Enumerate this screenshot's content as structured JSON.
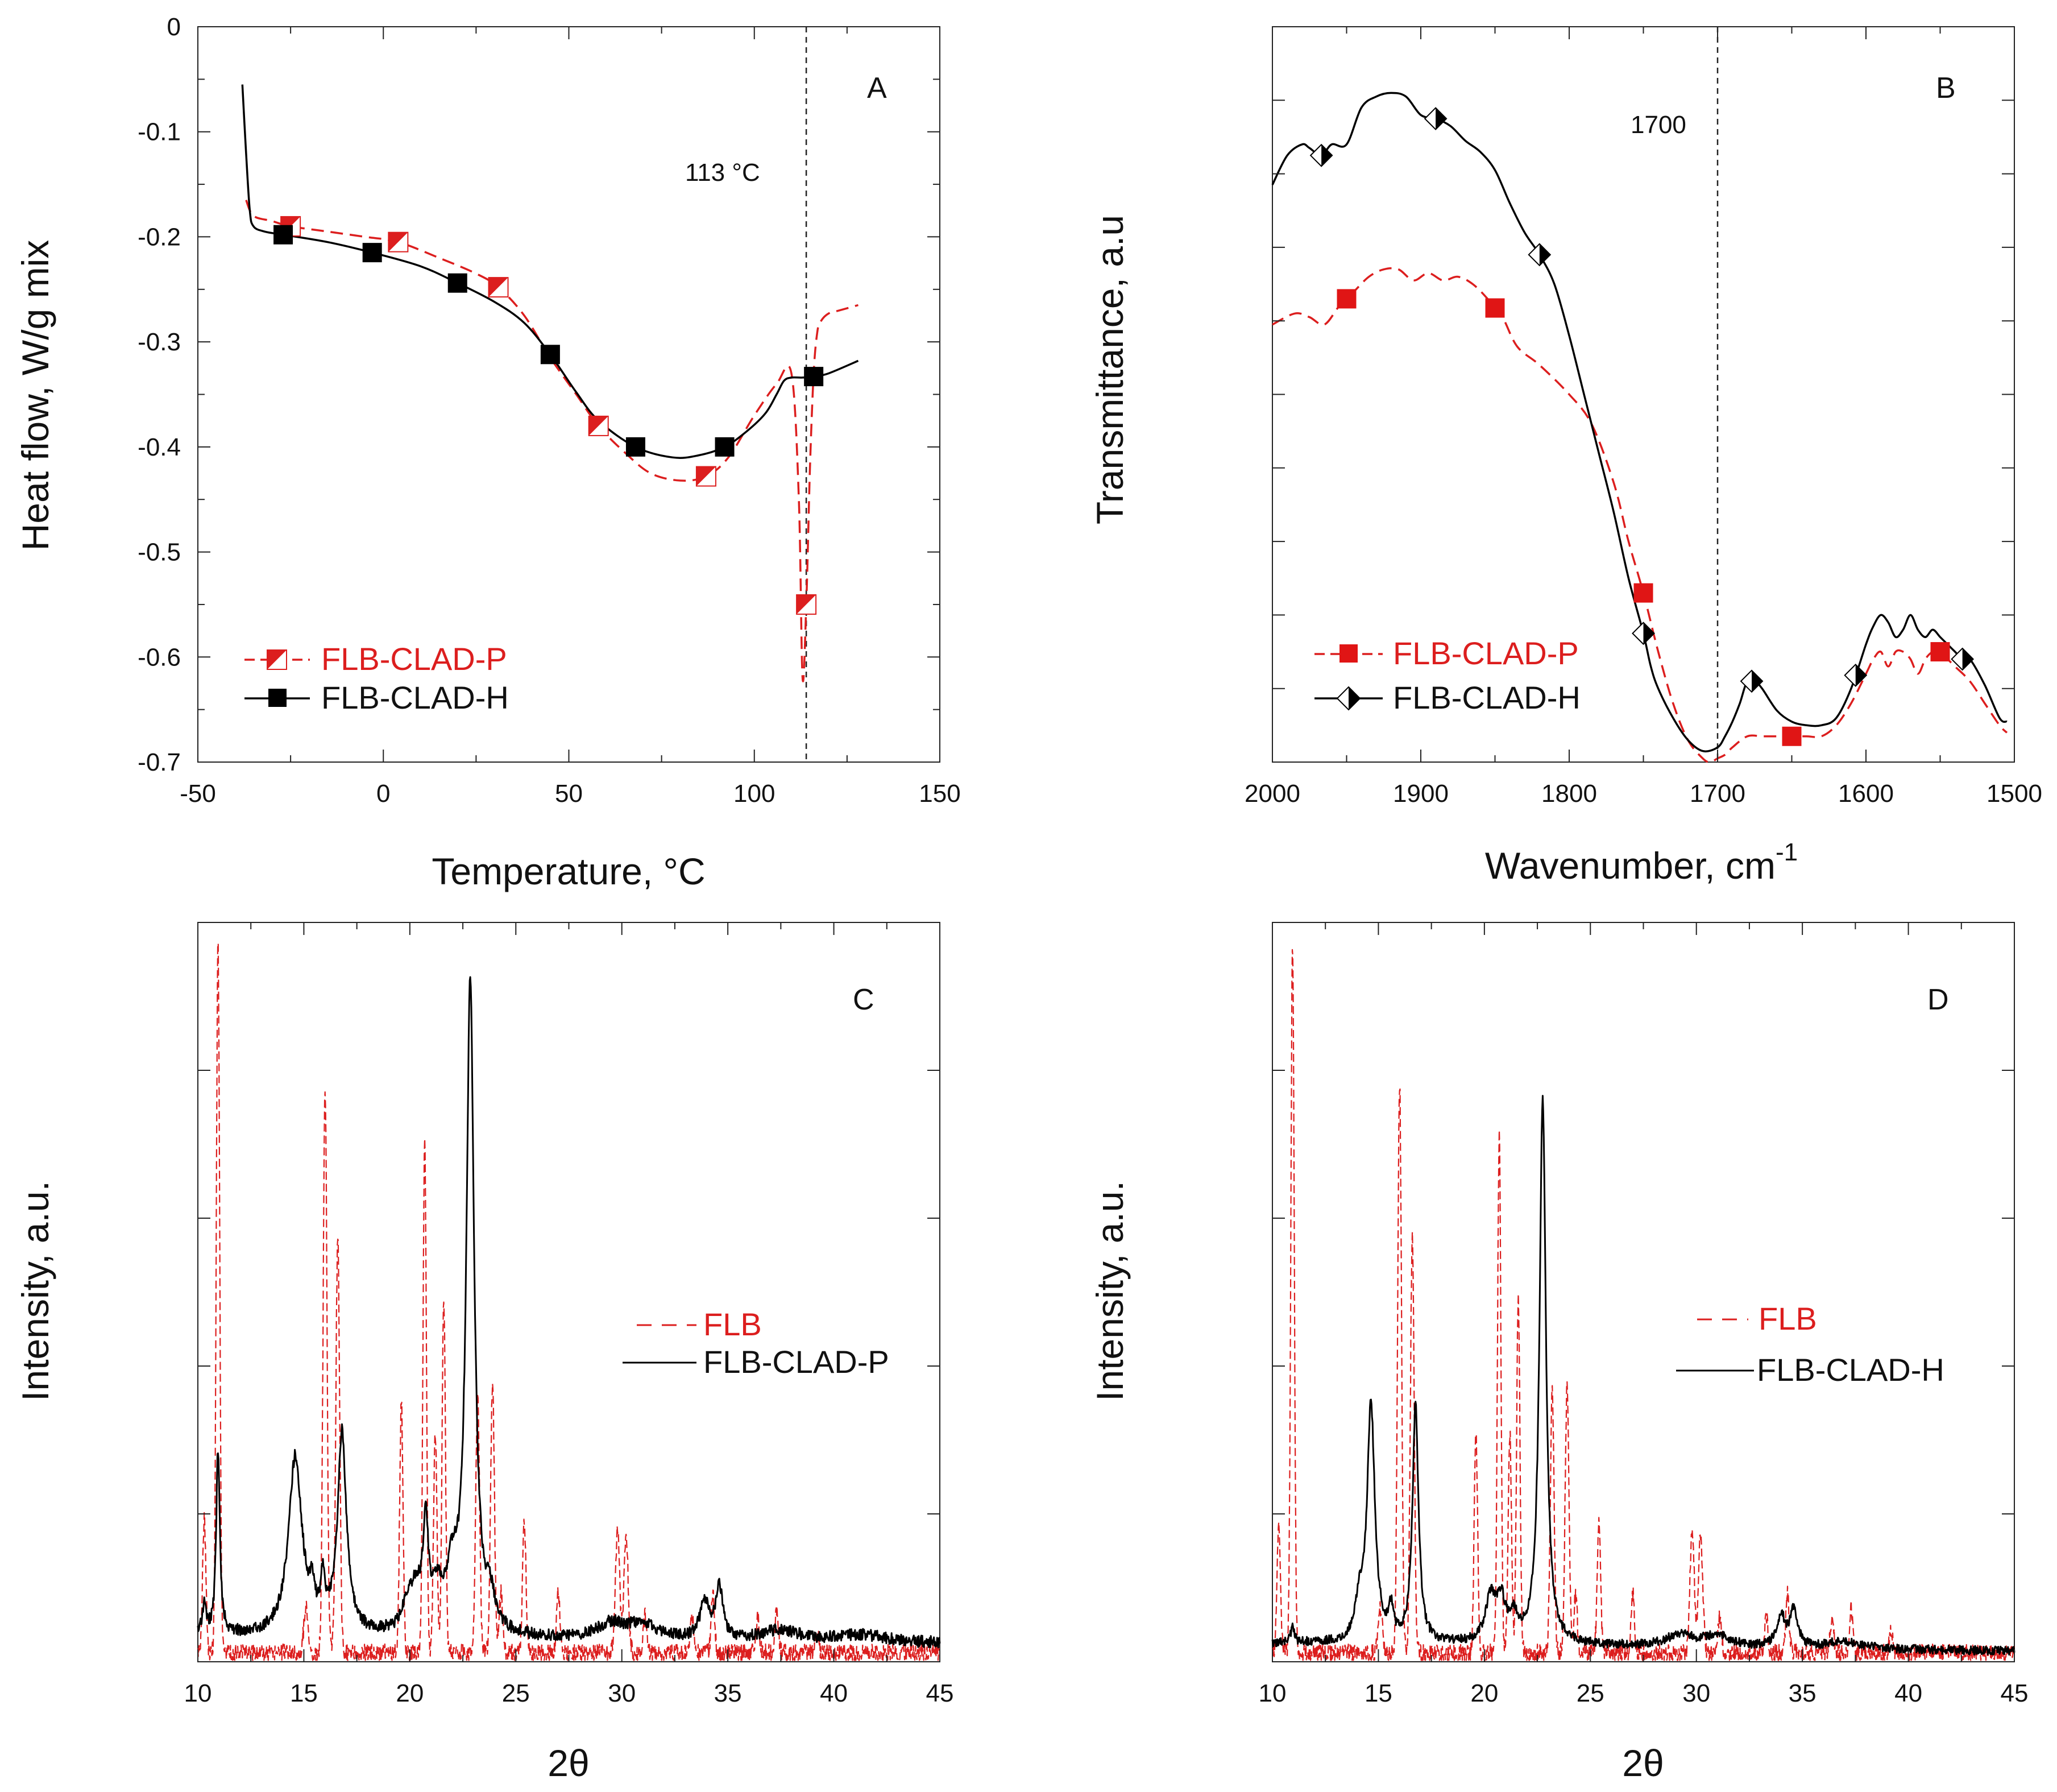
{
  "chart_data": [
    {
      "id": "A",
      "type": "line",
      "panel_label": "A",
      "xlabel": "Temperature, °C",
      "ylabel": "Heat flow, W/g mix",
      "xlim": [
        -50,
        150
      ],
      "ylim": [
        -0.7,
        0
      ],
      "xticks": [
        -50,
        0,
        50,
        100,
        150
      ],
      "yticks": [
        0,
        -0.1,
        -0.2,
        -0.3,
        -0.4,
        -0.5,
        -0.6,
        -0.7
      ],
      "ytick_labels": [
        "0",
        "-0.1",
        "-0.2",
        "-0.3",
        "-0.4",
        "-0.5",
        "-0.6",
        "-0.7"
      ],
      "grid": false,
      "legend_position": "bottom-left",
      "annotation": {
        "text": "113 °C",
        "vline_x": 114
      },
      "series": [
        {
          "name": "FLB-CLAD-P",
          "color": "#dc1e1e",
          "dash": true,
          "marker": "half-square",
          "x": [
            -37,
            -35,
            -30,
            -25,
            -15,
            -5,
            4,
            15,
            25,
            31,
            38,
            45,
            52,
            58,
            65,
            72,
            80,
            87,
            93,
            100,
            106,
            110,
            112,
            113,
            114,
            115,
            116,
            117,
            118,
            120,
            123,
            128
          ],
          "y": [
            -0.165,
            -0.18,
            -0.185,
            -0.19,
            -0.195,
            -0.2,
            -0.205,
            -0.22,
            -0.235,
            -0.248,
            -0.275,
            -0.315,
            -0.35,
            -0.38,
            -0.405,
            -0.425,
            -0.432,
            -0.428,
            -0.41,
            -0.37,
            -0.34,
            -0.33,
            -0.45,
            -0.62,
            -0.55,
            -0.42,
            -0.33,
            -0.29,
            -0.28,
            -0.273,
            -0.27,
            -0.265
          ],
          "marker_x": [
            -25,
            4,
            31,
            58,
            87,
            114
          ]
        },
        {
          "name": "FLB-CLAD-H",
          "color": "#000000",
          "dash": false,
          "marker": "square",
          "x": [
            -38,
            -37,
            -36,
            -35,
            -32,
            -27,
            -15,
            -3,
            10,
            20,
            30,
            38,
            45,
            52,
            58,
            68,
            78,
            85,
            92,
            98,
            103,
            106,
            108,
            110,
            113,
            116,
            120,
            128
          ],
          "y": [
            -0.055,
            -0.12,
            -0.175,
            -0.19,
            -0.195,
            -0.198,
            -0.205,
            -0.215,
            -0.228,
            -0.244,
            -0.262,
            -0.282,
            -0.312,
            -0.348,
            -0.375,
            -0.4,
            -0.41,
            -0.408,
            -0.4,
            -0.385,
            -0.368,
            -0.35,
            -0.337,
            -0.334,
            -0.334,
            -0.333,
            -0.33,
            -0.318
          ],
          "marker_x": [
            -27,
            -3,
            20,
            45,
            68,
            92,
            116
          ]
        }
      ]
    },
    {
      "id": "B",
      "type": "line",
      "panel_label": "B",
      "xlabel": "Wavenumber, cm",
      "xlabel_superscript": "-1",
      "ylabel": "Transmittance, a.u",
      "xlim": [
        2000,
        1500
      ],
      "ylim": [
        0,
        100
      ],
      "xticks": [
        2000,
        1900,
        1800,
        1700,
        1600,
        1500
      ],
      "grid": false,
      "legend_position": "bottom-left",
      "annotation": {
        "text": "1700",
        "vline_x": 1700
      },
      "series": [
        {
          "name": "FLB-CLAD-P",
          "color": "#dc1e1e",
          "dash": true,
          "marker": "square",
          "x": [
            2000,
            1985,
            1975,
            1965,
            1955,
            1945,
            1935,
            1925,
            1915,
            1905,
            1895,
            1885,
            1875,
            1865,
            1855,
            1845,
            1835,
            1820,
            1800,
            1785,
            1770,
            1760,
            1750,
            1740,
            1730,
            1720,
            1710,
            1705,
            1700,
            1695,
            1690,
            1680,
            1670,
            1660,
            1650,
            1640,
            1630,
            1620,
            1610,
            1600,
            1595,
            1590,
            1585,
            1580,
            1575,
            1570,
            1565,
            1560,
            1555,
            1550,
            1545,
            1540,
            1530,
            1520,
            1510,
            1505
          ],
          "y": [
            59.5,
            61,
            60.5,
            59.5,
            62,
            64,
            66,
            67,
            67,
            65.5,
            66.5,
            65.5,
            66,
            65,
            63,
            60.5,
            56.5,
            54,
            50,
            46,
            38,
            30,
            23,
            15,
            8,
            3,
            0.5,
            0,
            0.5,
            1,
            2,
            3.5,
            3.5,
            3.5,
            3.5,
            3.5,
            3.5,
            5,
            8,
            12,
            14,
            15,
            13,
            15,
            15,
            14,
            12,
            14,
            15,
            15,
            14,
            13,
            11,
            8,
            5,
            4
          ],
          "marker_x": [
            1950,
            1850,
            1750,
            1650,
            1550
          ]
        },
        {
          "name": "FLB-CLAD-H",
          "color": "#000000",
          "dash": false,
          "marker": "diamond",
          "x": [
            2000,
            1990,
            1980,
            1975,
            1967,
            1960,
            1950,
            1940,
            1930,
            1920,
            1910,
            1900,
            1890,
            1880,
            1870,
            1860,
            1850,
            1840,
            1830,
            1820,
            1810,
            1800,
            1790,
            1780,
            1770,
            1760,
            1750,
            1745,
            1740,
            1730,
            1720,
            1710,
            1700,
            1695,
            1690,
            1685,
            1680,
            1675,
            1670,
            1660,
            1650,
            1640,
            1630,
            1620,
            1610,
            1600,
            1595,
            1590,
            1585,
            1580,
            1575,
            1570,
            1565,
            1560,
            1555,
            1550,
            1545,
            1540,
            1535,
            1530,
            1520,
            1510,
            1505
          ],
          "y": [
            78.5,
            82.5,
            84,
            83.5,
            82.5,
            84,
            84,
            89,
            90.5,
            91,
            90.5,
            88,
            87.5,
            86.5,
            84.5,
            83,
            80.5,
            76,
            72,
            69,
            65,
            58,
            50,
            42,
            34,
            25,
            17.5,
            13,
            10,
            6,
            3,
            1.5,
            2,
            3.5,
            5.5,
            8,
            11,
            11,
            10,
            7,
            5.5,
            5,
            5,
            6,
            10,
            16,
            18.5,
            20,
            19,
            17,
            18,
            20,
            18,
            17,
            18,
            17,
            16,
            15,
            14,
            14,
            10.5,
            6,
            5.5
          ],
          "marker_x": [
            1967,
            1890,
            1820,
            1750,
            1677,
            1607,
            1535
          ]
        }
      ]
    },
    {
      "id": "C",
      "type": "line",
      "panel_label": "C",
      "xlabel": "2θ",
      "ylabel": "Intensity, a.u.",
      "xlim": [
        10,
        45
      ],
      "ylim": [
        0,
        100
      ],
      "xticks": [
        10,
        15,
        20,
        25,
        30,
        35,
        40,
        45
      ],
      "grid": false,
      "legend_position": "center-right",
      "series": [
        {
          "name": "FLB",
          "color": "#dc1e1e",
          "dash": true,
          "peaks": [
            [
              10.3,
              18,
              0.08
            ],
            [
              10.95,
              96,
              0.08
            ],
            [
              15.1,
              6,
              0.1
            ],
            [
              16.0,
              77,
              0.09
            ],
            [
              16.6,
              56,
              0.09
            ],
            [
              19.6,
              34,
              0.08
            ],
            [
              20.7,
              70,
              0.08
            ],
            [
              21.2,
              30,
              0.08
            ],
            [
              21.6,
              48,
              0.08
            ],
            [
              23.2,
              35,
              0.09
            ],
            [
              23.9,
              36,
              0.09
            ],
            [
              24.3,
              8,
              0.08
            ],
            [
              25.4,
              18,
              0.08
            ],
            [
              27.0,
              8,
              0.08
            ],
            [
              29.8,
              17,
              0.1
            ],
            [
              30.2,
              16,
              0.1
            ],
            [
              31.1,
              5,
              0.08
            ],
            [
              33.3,
              5,
              0.08
            ],
            [
              34.3,
              8,
              0.08
            ],
            [
              36.4,
              5,
              0.08
            ],
            [
              37.3,
              6,
              0.08
            ],
            [
              39.2,
              3,
              0.08
            ]
          ],
          "baseline": 1.2,
          "noise": 1.2
        },
        {
          "name": "FLB-CLAD-P",
          "color": "#000000",
          "dash": false,
          "peaks": [
            [
              10.3,
              4,
              0.1
            ],
            [
              10.95,
              25,
              0.1
            ],
            [
              14.6,
              24,
              0.38
            ],
            [
              15.4,
              4,
              0.12
            ],
            [
              15.9,
              6,
              0.12
            ],
            [
              16.8,
              27,
              0.25
            ],
            [
              19.9,
              3,
              0.3
            ],
            [
              20.3,
              5,
              0.35
            ],
            [
              20.75,
              13,
              0.15
            ],
            [
              21.3,
              5,
              0.3
            ],
            [
              22.0,
              7,
              0.3
            ],
            [
              22.85,
              88,
              0.22
            ],
            [
              23.8,
              4,
              0.25
            ],
            [
              29.5,
              2,
              0.8
            ],
            [
              31.0,
              2,
              0.8
            ],
            [
              33.9,
              5,
              0.25
            ],
            [
              34.6,
              7,
              0.2
            ],
            [
              37.5,
              1.5,
              1.0
            ],
            [
              41.3,
              1,
              1.5
            ]
          ],
          "baseline": 3.5,
          "noise": 0.8
        }
      ]
    },
    {
      "id": "D",
      "type": "line",
      "panel_label": "D",
      "xlabel": "2θ",
      "ylabel": "Intensity, a.u.",
      "xlim": [
        10,
        45
      ],
      "ylim": [
        0,
        100
      ],
      "xticks": [
        10,
        15,
        20,
        25,
        30,
        35,
        40,
        45
      ],
      "grid": false,
      "legend_position": "center-right",
      "series": [
        {
          "name": "FLB",
          "color": "#dc1e1e",
          "dash": true,
          "peaks": [
            [
              10.3,
              18,
              0.08
            ],
            [
              10.95,
              96,
              0.08
            ],
            [
              15.1,
              6,
              0.1
            ],
            [
              16.0,
              77,
              0.09
            ],
            [
              16.6,
              56,
              0.09
            ],
            [
              19.6,
              30,
              0.08
            ],
            [
              20.7,
              70,
              0.08
            ],
            [
              21.2,
              30,
              0.08
            ],
            [
              21.6,
              48,
              0.08
            ],
            [
              23.2,
              35,
              0.09
            ],
            [
              23.9,
              36,
              0.09
            ],
            [
              24.3,
              8,
              0.08
            ],
            [
              25.4,
              18,
              0.08
            ],
            [
              27.0,
              8,
              0.08
            ],
            [
              29.8,
              17,
              0.1
            ],
            [
              30.2,
              16,
              0.1
            ],
            [
              31.1,
              5,
              0.08
            ],
            [
              33.3,
              5,
              0.08
            ],
            [
              34.3,
              8,
              0.08
            ],
            [
              36.4,
              5,
              0.08
            ],
            [
              37.3,
              6,
              0.08
            ],
            [
              39.2,
              3,
              0.08
            ]
          ],
          "baseline": 1.2,
          "noise": 1.2
        },
        {
          "name": "FLB-CLAD-H",
          "color": "#000000",
          "dash": false,
          "peaks": [
            [
              10.95,
              2,
              0.1
            ],
            [
              14.1,
              5,
              0.2
            ],
            [
              14.65,
              32,
              0.22
            ],
            [
              15.6,
              4,
              0.12
            ],
            [
              16.75,
              32,
              0.17
            ],
            [
              20.3,
              6,
              0.3
            ],
            [
              20.8,
              5,
              0.25
            ],
            [
              21.4,
              3,
              0.25
            ],
            [
              22.75,
              74,
              0.18
            ],
            [
              29.2,
              1.5,
              0.8
            ],
            [
              31.0,
              1.5,
              0.8
            ],
            [
              34.0,
              4,
              0.25
            ],
            [
              34.6,
              5,
              0.2
            ],
            [
              37.0,
              1,
              1.0
            ]
          ],
          "baseline": 2.5,
          "noise": 0.6
        }
      ]
    }
  ]
}
